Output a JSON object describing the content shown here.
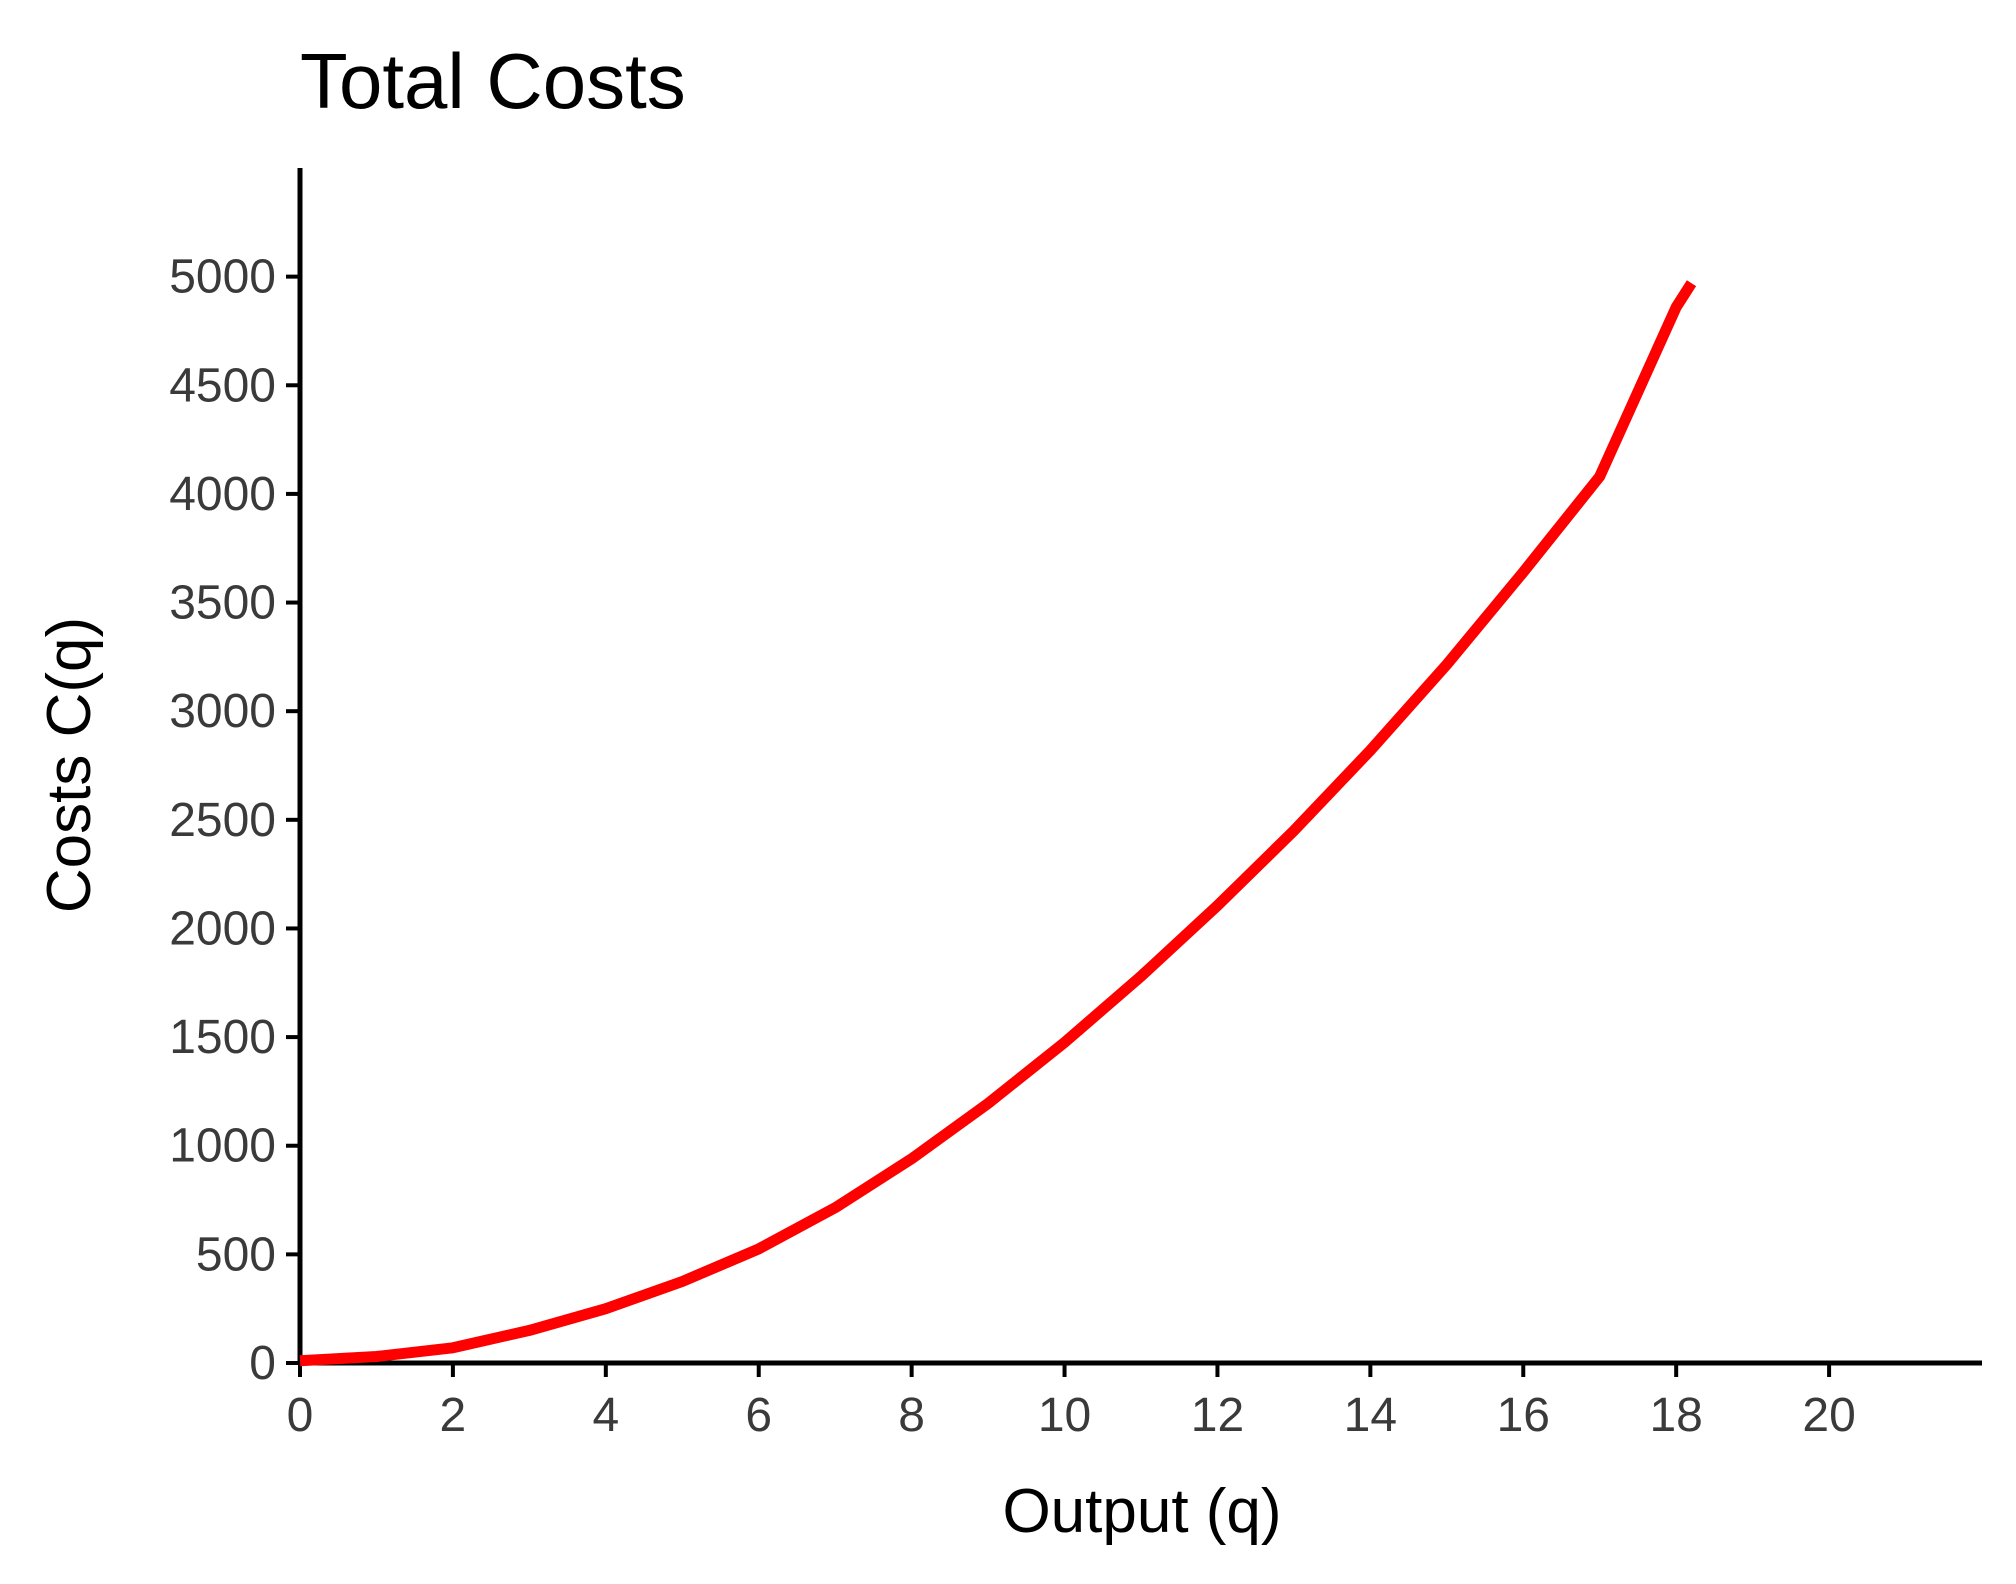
{
  "chart_data": {
    "type": "line",
    "title": "Total Costs",
    "xlabel": "Output (q)",
    "ylabel": "Costs C(q)",
    "xlim": [
      0,
      22
    ],
    "ylim": [
      0,
      5500
    ],
    "xticks": [
      0,
      2,
      4,
      6,
      8,
      10,
      12,
      14,
      16,
      18,
      20
    ],
    "yticks": [
      0,
      500,
      1000,
      1500,
      2000,
      2500,
      3000,
      3500,
      4000,
      4500,
      5000
    ],
    "grid": false,
    "legend": "none",
    "series": [
      {
        "color": "#ff0000",
        "x": [
          0,
          1,
          2,
          3,
          4,
          5,
          6,
          7,
          8,
          9,
          10,
          11,
          12,
          13,
          14,
          15,
          16,
          17,
          18,
          18.2
        ],
        "y": [
          10,
          30,
          70,
          150,
          250,
          375,
          525,
          715,
          940,
          1195,
          1475,
          1780,
          2105,
          2450,
          2820,
          3215,
          3640,
          4080,
          4860,
          4970
        ]
      }
    ]
  }
}
